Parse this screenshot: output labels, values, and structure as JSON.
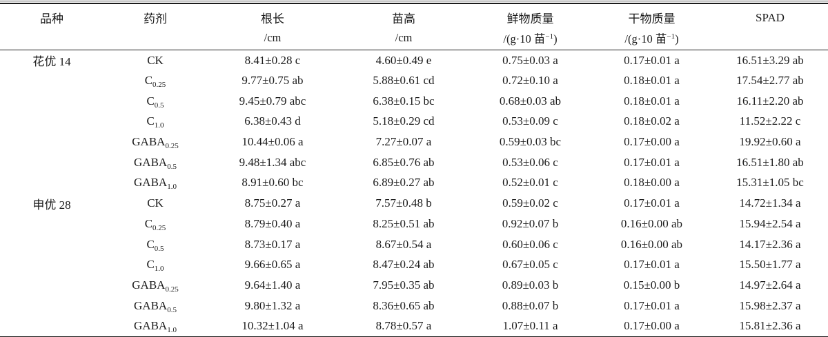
{
  "colors": {
    "text": "#1b1b1b",
    "background": "#ffffff",
    "rule": "#1b1b1b"
  },
  "table": {
    "headers": [
      {
        "key": "variety",
        "name": "品种",
        "unit_pre": "",
        "unit_sup": "",
        "unit_post": ""
      },
      {
        "key": "agent",
        "name": "药剂",
        "unit_pre": "",
        "unit_sup": "",
        "unit_post": ""
      },
      {
        "key": "root-length",
        "name": "根长",
        "unit_pre": "/cm",
        "unit_sup": "",
        "unit_post": ""
      },
      {
        "key": "seedling-height",
        "name": "苗高",
        "unit_pre": "/cm",
        "unit_sup": "",
        "unit_post": ""
      },
      {
        "key": "fresh-weight",
        "name": "鲜物质量",
        "unit_pre": "/(g·10 苗",
        "unit_sup": "−1",
        "unit_post": ")"
      },
      {
        "key": "dry-weight",
        "name": "干物质量",
        "unit_pre": "/(g·10 苗",
        "unit_sup": "−1",
        "unit_post": ")"
      },
      {
        "key": "spad",
        "name": "SPAD",
        "unit_pre": "",
        "unit_sup": "",
        "unit_post": ""
      }
    ],
    "rows": [
      {
        "variety": "花优 14",
        "agent": "CK",
        "agent_sub": "",
        "values": [
          "8.41±0.28 c",
          "4.60±0.49 e",
          "0.75±0.03 a",
          "0.17±0.01 a",
          "16.51±3.29 ab"
        ]
      },
      {
        "variety": "",
        "agent": "C",
        "agent_sub": "0.25",
        "values": [
          "9.77±0.75 ab",
          "5.88±0.61 cd",
          "0.72±0.10 a",
          "0.18±0.01 a",
          "17.54±2.77 ab"
        ]
      },
      {
        "variety": "",
        "agent": "C",
        "agent_sub": "0.5",
        "values": [
          "9.45±0.79 abc",
          "6.38±0.15 bc",
          "0.68±0.03 ab",
          "0.18±0.01 a",
          "16.11±2.20 ab"
        ]
      },
      {
        "variety": "",
        "agent": "C",
        "agent_sub": "1.0",
        "values": [
          "6.38±0.43 d",
          "5.18±0.29 cd",
          "0.53±0.09 c",
          "0.18±0.02 a",
          "11.52±2.22 c"
        ]
      },
      {
        "variety": "",
        "agent": "GABA",
        "agent_sub": "0.25",
        "values": [
          "10.44±0.06 a",
          "7.27±0.07 a",
          "0.59±0.03 bc",
          "0.17±0.00 a",
          "19.92±0.60 a"
        ]
      },
      {
        "variety": "",
        "agent": "GABA",
        "agent_sub": "0.5",
        "values": [
          "9.48±1.34 abc",
          "6.85±0.76 ab",
          "0.53±0.06 c",
          "0.17±0.01 a",
          "16.51±1.80 ab"
        ]
      },
      {
        "variety": "",
        "agent": "GABA",
        "agent_sub": "1.0",
        "values": [
          "8.91±0.60 bc",
          "6.89±0.27 ab",
          "0.52±0.01 c",
          "0.18±0.00 a",
          "15.31±1.05 bc"
        ]
      },
      {
        "variety": "申优 28",
        "agent": "CK",
        "agent_sub": "",
        "values": [
          "8.75±0.27 a",
          "7.57±0.48 b",
          "0.59±0.02 c",
          "0.17±0.01 a",
          "14.72±1.34 a"
        ]
      },
      {
        "variety": "",
        "agent": "C",
        "agent_sub": "0.25",
        "values": [
          "8.79±0.40 a",
          "8.25±0.51 ab",
          "0.92±0.07 b",
          "0.16±0.00 ab",
          "15.94±2.54 a"
        ]
      },
      {
        "variety": "",
        "agent": "C",
        "agent_sub": "0.5",
        "values": [
          "8.73±0.17 a",
          "8.67±0.54 a",
          "0.60±0.06 c",
          "0.16±0.00 ab",
          "14.17±2.36 a"
        ]
      },
      {
        "variety": "",
        "agent": "C",
        "agent_sub": "1.0",
        "values": [
          "9.66±0.65 a",
          "8.47±0.24 ab",
          "0.67±0.05 c",
          "0.17±0.01 a",
          "15.50±1.77 a"
        ]
      },
      {
        "variety": "",
        "agent": "GABA",
        "agent_sub": "0.25",
        "values": [
          "9.64±1.40 a",
          "7.95±0.35 ab",
          "0.89±0.03 b",
          "0.15±0.00 b",
          "14.97±2.64 a"
        ]
      },
      {
        "variety": "",
        "agent": "GABA",
        "agent_sub": "0.5",
        "values": [
          "9.80±1.32 a",
          "8.36±0.65 ab",
          "0.88±0.07 b",
          "0.17±0.01 a",
          "15.98±2.37 a"
        ]
      },
      {
        "variety": "",
        "agent": "GABA",
        "agent_sub": "1.0",
        "values": [
          "10.32±1.04 a",
          "8.78±0.57 a",
          "1.07±0.11 a",
          "0.17±0.00 a",
          "15.81±2.36 a"
        ]
      }
    ]
  },
  "chart_data": {
    "type": "table",
    "columns": [
      "品种",
      "药剂",
      "根长/cm",
      "苗高/cm",
      "鲜物质量/(g·10 苗⁻¹)",
      "干物质量/(g·10 苗⁻¹)",
      "SPAD"
    ],
    "rows": [
      [
        "花优 14",
        "CK",
        "8.41±0.28 c",
        "4.60±0.49 e",
        "0.75±0.03 a",
        "0.17±0.01 a",
        "16.51±3.29 ab"
      ],
      [
        "",
        "C0.25",
        "9.77±0.75 ab",
        "5.88±0.61 cd",
        "0.72±0.10 a",
        "0.18±0.01 a",
        "17.54±2.77 ab"
      ],
      [
        "",
        "C0.5",
        "9.45±0.79 abc",
        "6.38±0.15 bc",
        "0.68±0.03 ab",
        "0.18±0.01 a",
        "16.11±2.20 ab"
      ],
      [
        "",
        "C1.0",
        "6.38±0.43 d",
        "5.18±0.29 cd",
        "0.53±0.09 c",
        "0.18±0.02 a",
        "11.52±2.22 c"
      ],
      [
        "",
        "GABA0.25",
        "10.44±0.06 a",
        "7.27±0.07 a",
        "0.59±0.03 bc",
        "0.17±0.00 a",
        "19.92±0.60 a"
      ],
      [
        "",
        "GABA0.5",
        "9.48±1.34 abc",
        "6.85±0.76 ab",
        "0.53±0.06 c",
        "0.17±0.01 a",
        "16.51±1.80 ab"
      ],
      [
        "",
        "GABA1.0",
        "8.91±0.60 bc",
        "6.89±0.27 ab",
        "0.52±0.01 c",
        "0.18±0.00 a",
        "15.31±1.05 bc"
      ],
      [
        "申优 28",
        "CK",
        "8.75±0.27 a",
        "7.57±0.48 b",
        "0.59±0.02 c",
        "0.17±0.01 a",
        "14.72±1.34 a"
      ],
      [
        "",
        "C0.25",
        "8.79±0.40 a",
        "8.25±0.51 ab",
        "0.92±0.07 b",
        "0.16±0.00 ab",
        "15.94±2.54 a"
      ],
      [
        "",
        "C0.5",
        "8.73±0.17 a",
        "8.67±0.54 a",
        "0.60±0.06 c",
        "0.16±0.00 ab",
        "14.17±2.36 a"
      ],
      [
        "",
        "C1.0",
        "9.66±0.65 a",
        "8.47±0.24 ab",
        "0.67±0.05 c",
        "0.17±0.01 a",
        "15.50±1.77 a"
      ],
      [
        "",
        "GABA0.25",
        "9.64±1.40 a",
        "7.95±0.35 ab",
        "0.89±0.03 b",
        "0.15±0.00 b",
        "14.97±2.64 a"
      ],
      [
        "",
        "GABA0.5",
        "9.80±1.32 a",
        "8.36±0.65 ab",
        "0.88±0.07 b",
        "0.17±0.01 a",
        "15.98±2.37 a"
      ],
      [
        "",
        "GABA1.0",
        "10.32±1.04 a",
        "8.78±0.57 a",
        "1.07±0.11 a",
        "0.17±0.00 a",
        "15.81±2.36 a"
      ]
    ]
  }
}
